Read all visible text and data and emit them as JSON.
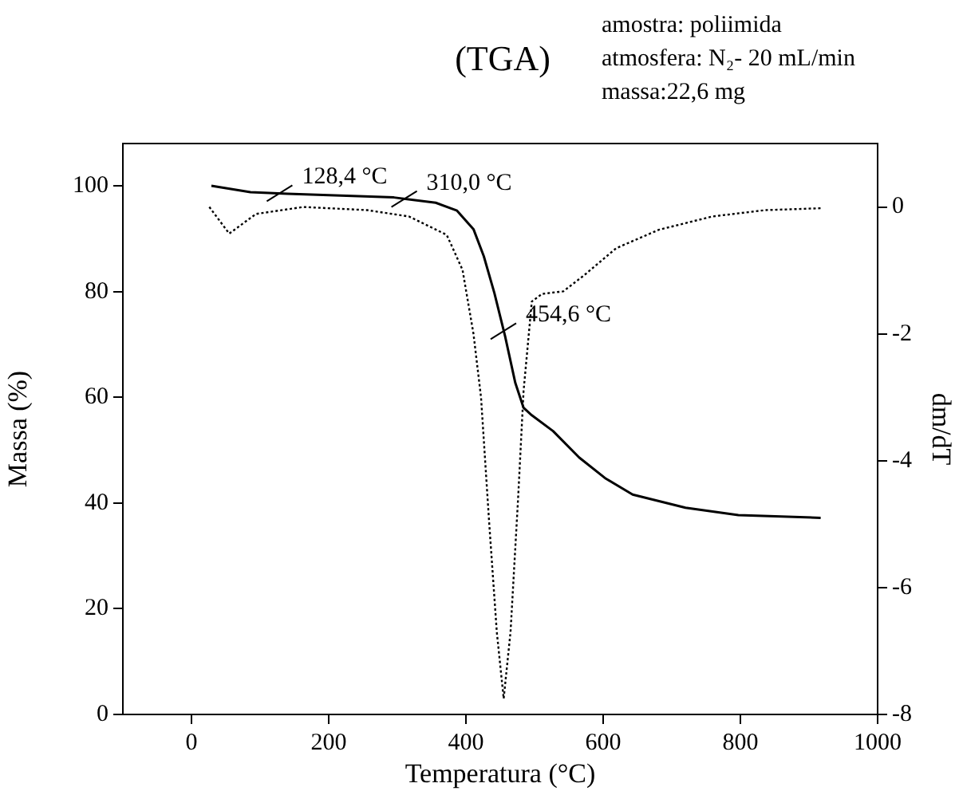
{
  "chart_data": {
    "type": "line",
    "title": "(TGA)",
    "xlabel": "Temperatura (°C)",
    "ylabel": "Massa (%)",
    "y2label": "dm/dT",
    "xlim": [
      -100,
      1000
    ],
    "xticks": [
      0,
      200,
      400,
      600,
      800,
      1000
    ],
    "ylim": [
      0,
      108
    ],
    "yticks": [
      0,
      20,
      40,
      60,
      80,
      100
    ],
    "y2lim": [
      -8,
      1
    ],
    "y2ticks": [
      0,
      -2,
      -4,
      -6,
      -8
    ],
    "grid": false,
    "legend": false,
    "marker": "none",
    "series": [
      {
        "color": "#000000",
        "line_style": "solid",
        "axis": "y",
        "x": [
          29,
          86,
          140,
          295,
          356,
          387,
          411,
          426,
          441.5,
          457,
          472,
          484,
          496,
          527,
          565,
          604,
          643,
          720,
          797,
          917
        ],
        "values": [
          100,
          98.8,
          98.5,
          97.8,
          96.8,
          95.3,
          91.8,
          86.7,
          79.7,
          71.6,
          62.7,
          58,
          56.6,
          53.6,
          48.6,
          44.6,
          41.6,
          39.1,
          37.7,
          37.2
        ]
      },
      {
        "color": "#000000",
        "line_style": "dotted",
        "axis": "y2",
        "x": [
          26,
          55,
          94,
          163,
          256,
          317,
          372,
          395,
          411,
          422,
          434,
          445,
          455,
          465,
          476,
          484,
          496,
          511,
          542,
          573,
          619,
          681,
          759,
          836,
          917
        ],
        "values": [
          0,
          -0.42,
          -0.11,
          0,
          -0.05,
          -0.15,
          -0.44,
          -0.99,
          -2.0,
          -3.0,
          -5.0,
          -6.7,
          -7.75,
          -6.7,
          -4.6,
          -2.9,
          -1.49,
          -1.37,
          -1.33,
          -1.07,
          -0.65,
          -0.36,
          -0.15,
          -0.05,
          -0.02
        ]
      }
    ],
    "annotations": [
      {
        "text": "128,4 °C",
        "x": 128.4,
        "y": 98.6
      },
      {
        "text": "310,0 °C",
        "x": 310,
        "y": 97.5
      },
      {
        "text": "454,6 °C",
        "x": 454.6,
        "y": 72.5
      },
      "amostra: poliimida",
      "atmosfera: N₂- 20 mL/min",
      "massa:22,6 mg"
    ]
  }
}
